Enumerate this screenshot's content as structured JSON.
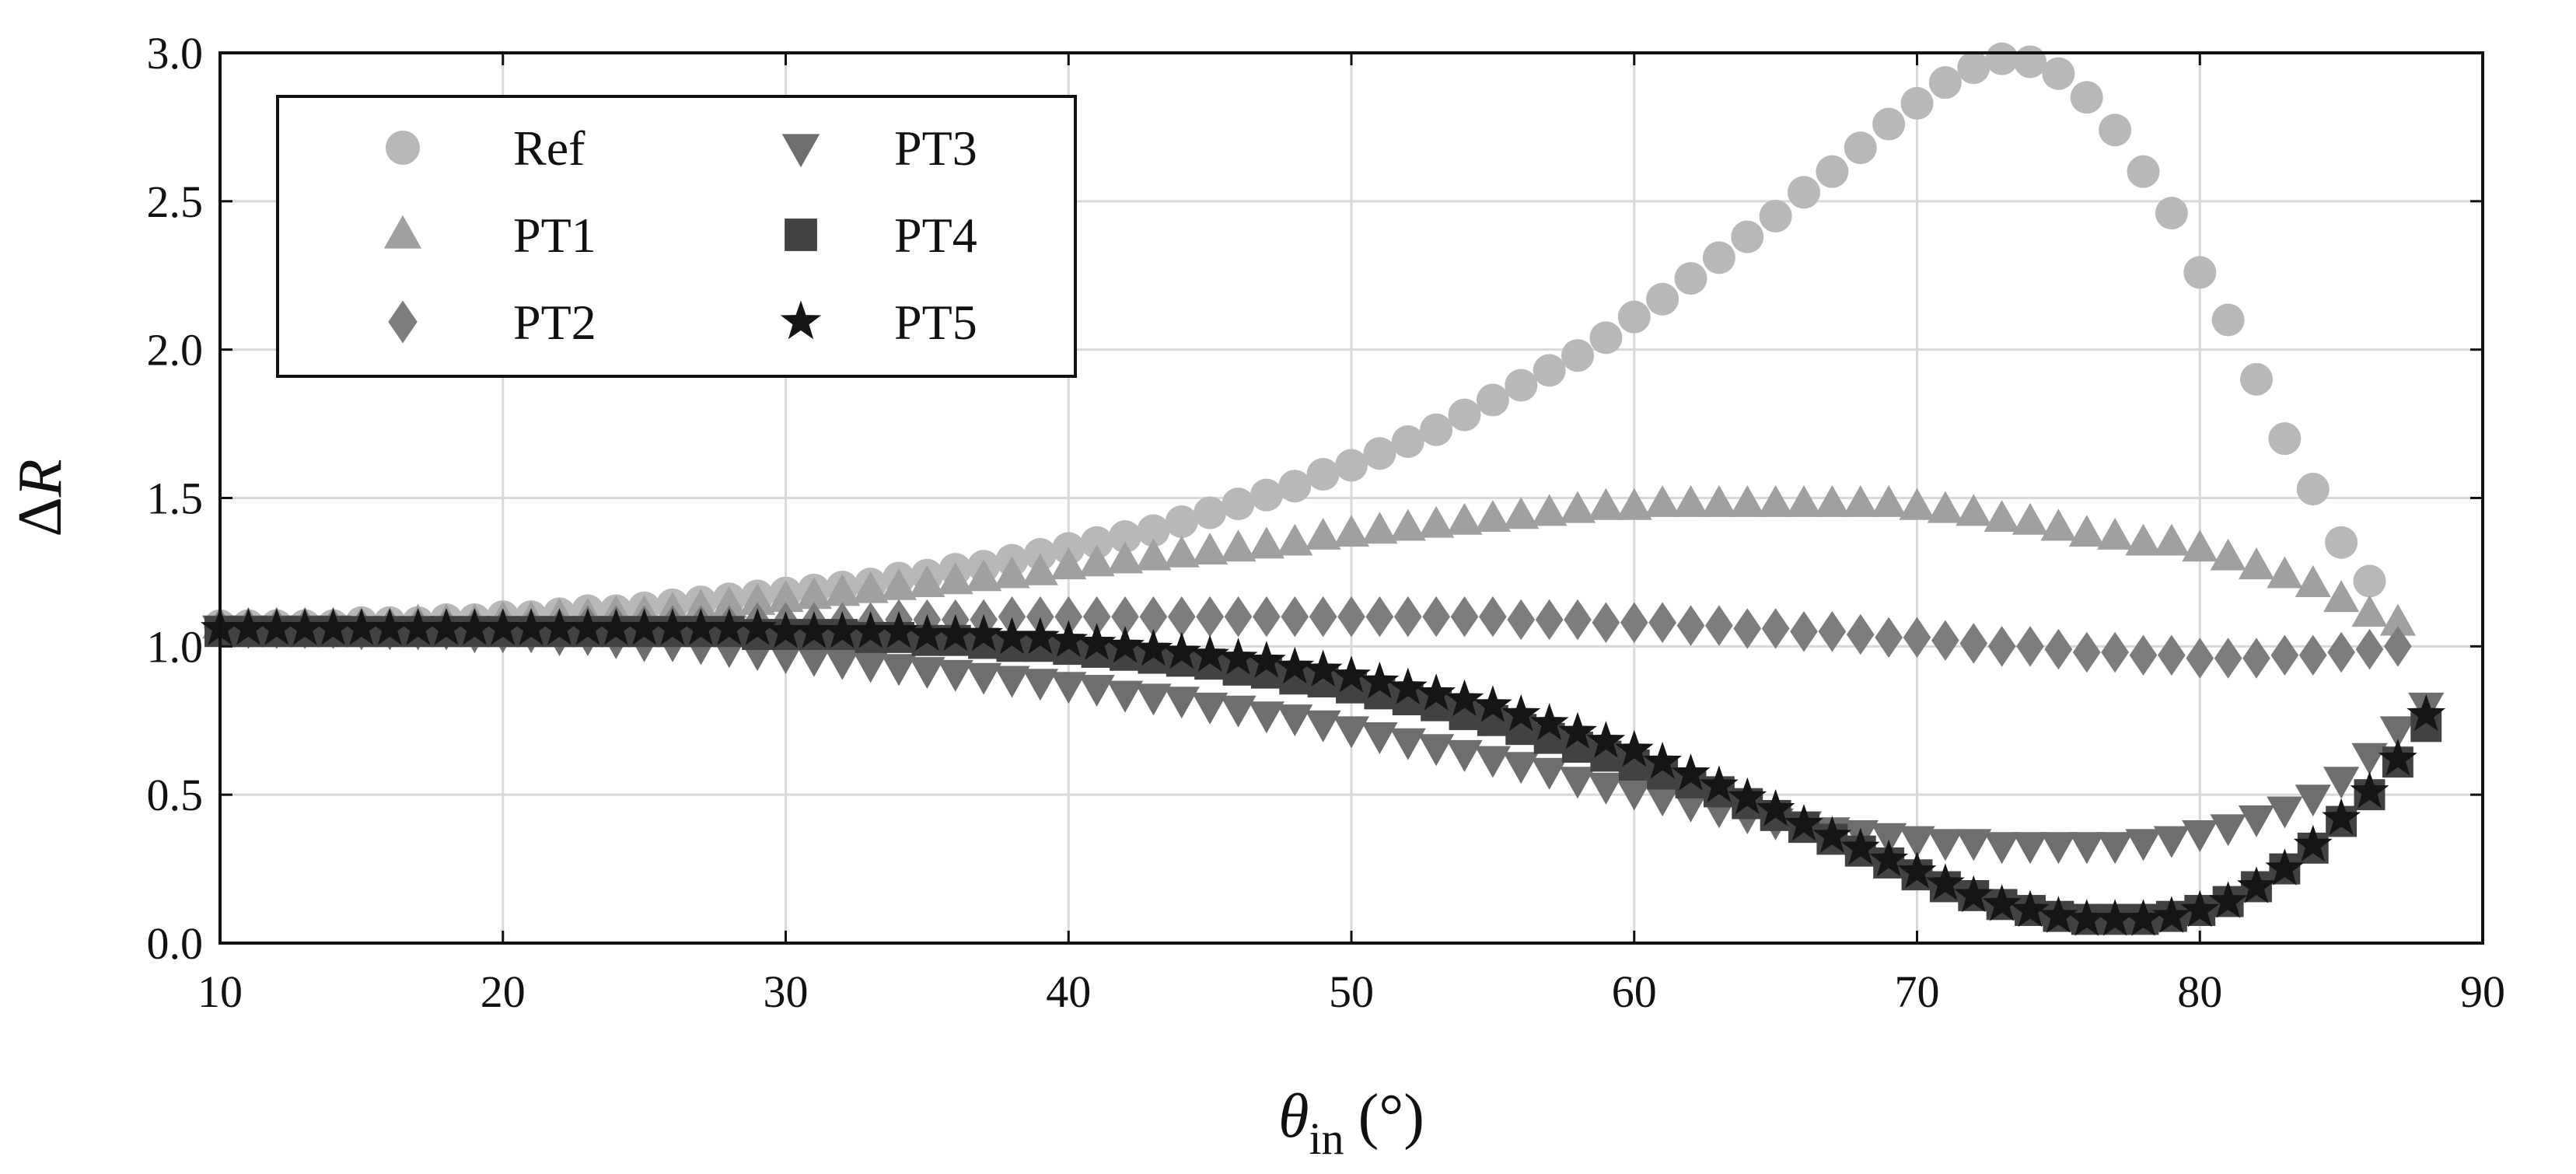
{
  "chart_data": {
    "type": "scatter",
    "title": "",
    "xlabel": {
      "symbol": "θ",
      "subscript": "in",
      "unit": "(°)"
    },
    "ylabel": {
      "prefix": "Δ",
      "symbol": "R"
    },
    "xlim": [
      10,
      90
    ],
    "ylim": [
      0,
      3.0
    ],
    "xticks": [
      10,
      20,
      30,
      40,
      50,
      60,
      70,
      80,
      90
    ],
    "xtick_labels": [
      "10",
      "20",
      "30",
      "40",
      "50",
      "60",
      "70",
      "80",
      "90"
    ],
    "yticks": [
      0,
      0.5,
      1.0,
      1.5,
      2.0,
      2.5,
      3.0
    ],
    "ytick_labels": [
      "0.0",
      "0.5",
      "1.0",
      "1.5",
      "2.0",
      "2.5",
      "3.0"
    ],
    "grid": true,
    "legend_position": "top-left",
    "x_start": 10,
    "x_step": 1,
    "series": [
      {
        "name": "Ref",
        "marker": "circle",
        "color": "#b8b8b8",
        "values": [
          1.07,
          1.07,
          1.07,
          1.07,
          1.07,
          1.08,
          1.08,
          1.08,
          1.09,
          1.09,
          1.1,
          1.1,
          1.11,
          1.12,
          1.12,
          1.13,
          1.14,
          1.15,
          1.16,
          1.17,
          1.18,
          1.19,
          1.2,
          1.21,
          1.23,
          1.24,
          1.26,
          1.27,
          1.29,
          1.31,
          1.33,
          1.35,
          1.37,
          1.39,
          1.42,
          1.45,
          1.48,
          1.51,
          1.54,
          1.58,
          1.61,
          1.65,
          1.69,
          1.73,
          1.78,
          1.83,
          1.88,
          1.93,
          1.98,
          2.04,
          2.11,
          2.17,
          2.24,
          2.31,
          2.38,
          2.45,
          2.53,
          2.6,
          2.68,
          2.76,
          2.83,
          2.9,
          2.95,
          2.98,
          2.97,
          2.93,
          2.85,
          2.74,
          2.6,
          2.46,
          2.26,
          2.1,
          1.9,
          1.7,
          1.53,
          1.35,
          1.22
        ]
      },
      {
        "name": "PT1",
        "marker": "triangle-up",
        "color": "#a0a0a0",
        "values": [
          1.07,
          1.07,
          1.07,
          1.07,
          1.07,
          1.07,
          1.07,
          1.08,
          1.08,
          1.08,
          1.09,
          1.09,
          1.1,
          1.1,
          1.11,
          1.11,
          1.12,
          1.13,
          1.14,
          1.15,
          1.16,
          1.17,
          1.18,
          1.19,
          1.2,
          1.21,
          1.22,
          1.23,
          1.24,
          1.25,
          1.27,
          1.28,
          1.29,
          1.3,
          1.31,
          1.32,
          1.33,
          1.34,
          1.35,
          1.37,
          1.38,
          1.39,
          1.4,
          1.41,
          1.42,
          1.43,
          1.44,
          1.45,
          1.46,
          1.47,
          1.47,
          1.48,
          1.48,
          1.48,
          1.48,
          1.48,
          1.48,
          1.48,
          1.48,
          1.48,
          1.47,
          1.46,
          1.45,
          1.43,
          1.42,
          1.4,
          1.38,
          1.37,
          1.35,
          1.35,
          1.33,
          1.3,
          1.27,
          1.24,
          1.21,
          1.16,
          1.11,
          1.08
        ]
      },
      {
        "name": "PT2",
        "marker": "diamond",
        "color": "#7d7d7d",
        "values": [
          1.06,
          1.06,
          1.06,
          1.06,
          1.06,
          1.06,
          1.06,
          1.06,
          1.06,
          1.06,
          1.06,
          1.06,
          1.06,
          1.07,
          1.07,
          1.07,
          1.07,
          1.07,
          1.07,
          1.08,
          1.08,
          1.08,
          1.08,
          1.08,
          1.09,
          1.09,
          1.09,
          1.09,
          1.1,
          1.1,
          1.1,
          1.1,
          1.1,
          1.1,
          1.1,
          1.1,
          1.1,
          1.1,
          1.1,
          1.1,
          1.1,
          1.1,
          1.1,
          1.1,
          1.1,
          1.1,
          1.09,
          1.09,
          1.09,
          1.08,
          1.08,
          1.08,
          1.07,
          1.07,
          1.06,
          1.06,
          1.05,
          1.05,
          1.04,
          1.03,
          1.03,
          1.02,
          1.01,
          1.0,
          1.0,
          0.99,
          0.98,
          0.98,
          0.97,
          0.97,
          0.96,
          0.96,
          0.96,
          0.97,
          0.97,
          0.98,
          0.99,
          1.0
        ]
      },
      {
        "name": "PT3",
        "marker": "triangle-down",
        "color": "#6e6e6e",
        "values": [
          1.06,
          1.06,
          1.06,
          1.06,
          1.06,
          1.05,
          1.05,
          1.05,
          1.05,
          1.04,
          1.04,
          1.04,
          1.03,
          1.03,
          1.02,
          1.01,
          1.01,
          1.0,
          0.99,
          0.98,
          0.97,
          0.96,
          0.95,
          0.94,
          0.93,
          0.92,
          0.91,
          0.9,
          0.89,
          0.88,
          0.87,
          0.86,
          0.84,
          0.83,
          0.82,
          0.8,
          0.79,
          0.77,
          0.76,
          0.74,
          0.72,
          0.7,
          0.68,
          0.66,
          0.64,
          0.62,
          0.6,
          0.58,
          0.55,
          0.53,
          0.51,
          0.49,
          0.47,
          0.45,
          0.43,
          0.41,
          0.4,
          0.38,
          0.37,
          0.36,
          0.35,
          0.34,
          0.34,
          0.33,
          0.33,
          0.33,
          0.33,
          0.33,
          0.34,
          0.35,
          0.37,
          0.39,
          0.42,
          0.45,
          0.49,
          0.55,
          0.63,
          0.72,
          0.8
        ]
      },
      {
        "name": "PT4",
        "marker": "square",
        "color": "#424242",
        "values": [
          1.05,
          1.05,
          1.05,
          1.05,
          1.05,
          1.05,
          1.05,
          1.05,
          1.05,
          1.05,
          1.05,
          1.05,
          1.05,
          1.05,
          1.05,
          1.05,
          1.05,
          1.05,
          1.05,
          1.04,
          1.04,
          1.04,
          1.04,
          1.03,
          1.03,
          1.02,
          1.02,
          1.01,
          1.0,
          1.0,
          0.99,
          0.98,
          0.97,
          0.96,
          0.95,
          0.94,
          0.92,
          0.91,
          0.89,
          0.88,
          0.86,
          0.84,
          0.82,
          0.8,
          0.77,
          0.75,
          0.72,
          0.69,
          0.66,
          0.63,
          0.6,
          0.57,
          0.54,
          0.51,
          0.47,
          0.43,
          0.39,
          0.35,
          0.31,
          0.27,
          0.23,
          0.19,
          0.16,
          0.13,
          0.11,
          0.09,
          0.08,
          0.08,
          0.08,
          0.09,
          0.11,
          0.14,
          0.19,
          0.25,
          0.32,
          0.41,
          0.5,
          0.61,
          0.73
        ]
      },
      {
        "name": "PT5",
        "marker": "star",
        "color": "#151515",
        "values": [
          1.06,
          1.06,
          1.06,
          1.06,
          1.06,
          1.06,
          1.06,
          1.06,
          1.06,
          1.06,
          1.06,
          1.06,
          1.06,
          1.06,
          1.06,
          1.06,
          1.06,
          1.06,
          1.06,
          1.06,
          1.05,
          1.05,
          1.05,
          1.05,
          1.05,
          1.04,
          1.04,
          1.04,
          1.03,
          1.03,
          1.02,
          1.01,
          1.0,
          0.99,
          0.98,
          0.97,
          0.96,
          0.95,
          0.93,
          0.92,
          0.9,
          0.88,
          0.86,
          0.84,
          0.82,
          0.8,
          0.77,
          0.74,
          0.71,
          0.68,
          0.65,
          0.61,
          0.57,
          0.53,
          0.49,
          0.45,
          0.4,
          0.36,
          0.32,
          0.28,
          0.24,
          0.2,
          0.16,
          0.13,
          0.11,
          0.09,
          0.08,
          0.08,
          0.08,
          0.09,
          0.11,
          0.14,
          0.19,
          0.25,
          0.33,
          0.42,
          0.51,
          0.62,
          0.77
        ]
      }
    ]
  }
}
